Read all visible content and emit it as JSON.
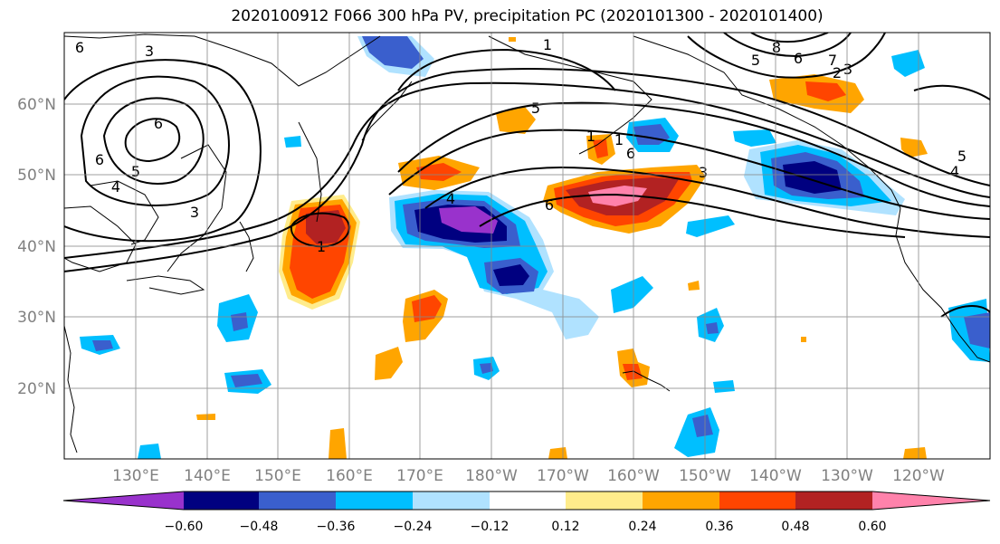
{
  "title": "2020100912 F066 300 hPa PV, precipitation PC (2020101300 - 2020101400)",
  "lat_labels": [
    "60°N",
    "50°N",
    "40°N",
    "30°N",
    "20°N"
  ],
  "lon_labels": [
    "130°E",
    "140°E",
    "150°E",
    "160°E",
    "170°E",
    "180°W",
    "170°W",
    "160°W",
    "150°W",
    "140°W",
    "130°W",
    "120°W"
  ],
  "colorbar": {
    "colors": [
      "#9932cc",
      "#000080",
      "#3a5fcd",
      "#00bfff",
      "#b0e2ff",
      "#ffffff",
      "#ffec8b",
      "#ffa500",
      "#ff4500",
      "#b22222",
      "#ff82ab"
    ],
    "tick_labels": [
      "−0.60",
      "−0.48",
      "−0.36",
      "−0.24",
      "−0.12",
      "0.12",
      "0.24",
      "0.36",
      "0.48",
      "0.60"
    ]
  },
  "contour_labels": [
    {
      "text": "6"
    },
    {
      "text": "3"
    },
    {
      "text": "6"
    },
    {
      "text": "5"
    },
    {
      "text": "6"
    },
    {
      "text": "4"
    },
    {
      "text": "1"
    },
    {
      "text": "3"
    },
    {
      "text": "5"
    },
    {
      "text": "1"
    },
    {
      "text": "4"
    },
    {
      "text": "6"
    },
    {
      "text": "3"
    },
    {
      "text": "1"
    },
    {
      "text": "1"
    },
    {
      "text": "6"
    },
    {
      "text": "8"
    },
    {
      "text": "6"
    },
    {
      "text": "5"
    },
    {
      "text": "5"
    },
    {
      "text": "4"
    },
    {
      "text": "7"
    },
    {
      "text": "2"
    },
    {
      "text": "3"
    }
  ]
}
